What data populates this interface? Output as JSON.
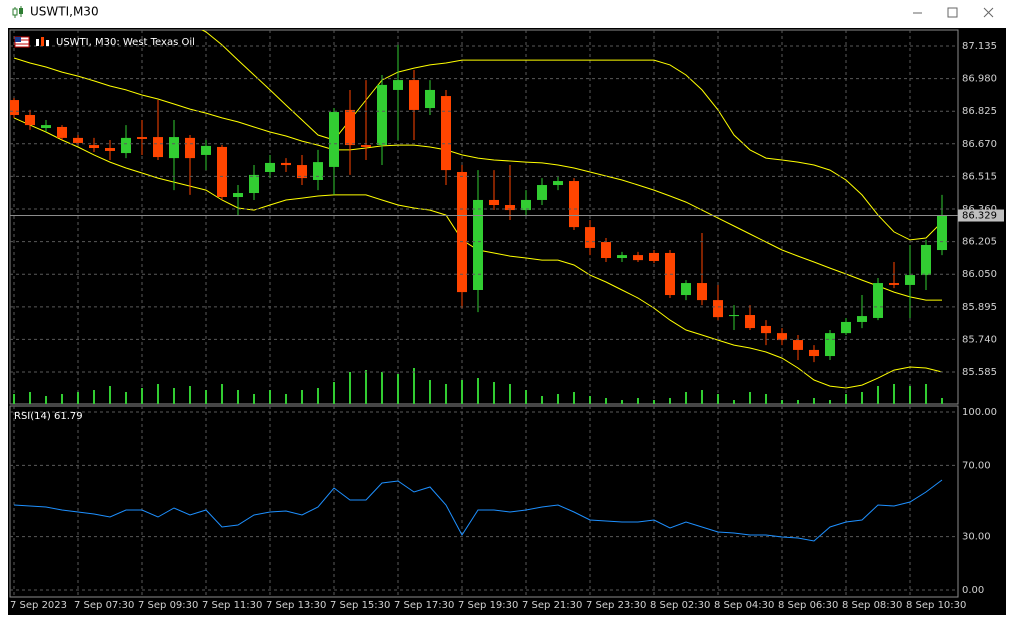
{
  "window_title": "USWTI,M30",
  "chart_data": [
    {
      "type": "candlestick",
      "title": "USWTI, M30:  West Texas Oil",
      "categories": [
        "7 Sep 2023",
        null,
        null,
        null,
        "7 Sep 07:30",
        null,
        null,
        null,
        "7 Sep 09:30",
        null,
        null,
        null,
        "7 Sep 11:30",
        null,
        null,
        null,
        "7 Sep 13:30",
        null,
        null,
        null,
        "7 Sep 15:30",
        null,
        null,
        null,
        "7 Sep 17:30",
        null,
        null,
        null,
        "7 Sep 19:30",
        null,
        null,
        null,
        "7 Sep 21:30",
        null,
        null,
        null,
        "7 Sep 23:30",
        null,
        null,
        null,
        "8 Sep 02:30",
        null,
        null,
        null,
        "8 Sep 04:30",
        null,
        null,
        null,
        "8 Sep 06:30",
        null,
        null,
        null,
        "8 Sep 08:30",
        null,
        null,
        null,
        "8 Sep 10:30",
        null,
        null
      ],
      "open": [
        86.878,
        86.807,
        86.745,
        86.75,
        86.698,
        86.664,
        86.65,
        86.626,
        86.702,
        86.702,
        86.602,
        86.698,
        86.617,
        86.655,
        86.417,
        86.436,
        86.536,
        86.579,
        86.569,
        86.498,
        86.56,
        86.831,
        86.664,
        86.664,
        86.926,
        86.973,
        86.84,
        86.897,
        86.536,
        85.975,
        86.403,
        86.379,
        86.355,
        86.403,
        86.474,
        86.493,
        86.274,
        86.203,
        86.127,
        86.141,
        86.151,
        86.151,
        85.951,
        86.008,
        85.927,
        85.851,
        85.856,
        85.804,
        85.77,
        85.737,
        85.69,
        85.661,
        85.77,
        85.823,
        85.842,
        86.008,
        85.999,
        86.046,
        86.165
      ],
      "high": [
        86.888,
        86.831,
        86.783,
        86.759,
        86.712,
        86.698,
        86.688,
        86.759,
        86.783,
        86.878,
        86.783,
        86.712,
        86.688,
        86.664,
        86.474,
        86.569,
        86.617,
        86.602,
        86.617,
        86.641,
        86.84,
        86.926,
        86.973,
        86.997,
        87.14,
        87.021,
        86.973,
        86.926,
        86.569,
        86.545,
        86.545,
        86.569,
        86.45,
        86.507,
        86.512,
        86.507,
        86.308,
        86.222,
        86.156,
        86.156,
        86.165,
        86.165,
        86.022,
        86.246,
        85.999,
        85.903,
        85.903,
        85.832,
        85.794,
        85.761,
        85.713,
        85.785,
        85.842,
        85.951,
        86.032,
        86.108,
        86.189,
        86.213,
        86.427
      ],
      "low": [
        86.793,
        86.736,
        86.726,
        86.688,
        86.664,
        86.631,
        86.593,
        86.602,
        86.617,
        86.593,
        86.45,
        86.427,
        86.545,
        86.403,
        86.331,
        86.403,
        86.507,
        86.536,
        86.474,
        86.45,
        86.427,
        86.522,
        86.593,
        86.569,
        86.688,
        86.688,
        86.807,
        86.474,
        85.889,
        85.87,
        86.355,
        86.308,
        86.331,
        86.379,
        86.45,
        86.26,
        86.141,
        86.108,
        86.108,
        86.108,
        86.103,
        85.937,
        85.927,
        85.903,
        85.832,
        85.785,
        85.785,
        85.713,
        85.713,
        85.642,
        85.632,
        85.642,
        85.761,
        85.794,
        85.832,
        85.984,
        85.842,
        85.975,
        86.141
      ],
      "close": [
        86.807,
        86.759,
        86.759,
        86.698,
        86.674,
        86.65,
        86.636,
        86.698,
        86.693,
        86.607,
        86.702,
        86.602,
        86.66,
        86.417,
        86.436,
        86.522,
        86.579,
        86.569,
        86.507,
        86.583,
        86.821,
        86.664,
        86.655,
        86.95,
        86.973,
        86.831,
        86.926,
        86.545,
        85.965,
        86.403,
        86.379,
        86.355,
        86.403,
        86.474,
        86.493,
        86.274,
        86.175,
        86.127,
        86.141,
        86.117,
        86.113,
        85.951,
        86.008,
        85.927,
        85.846,
        85.856,
        85.794,
        85.77,
        85.737,
        85.69,
        85.661,
        85.77,
        85.823,
        85.851,
        86.008,
        85.999,
        86.046,
        86.189,
        86.329
      ],
      "up_color": "#32cd32",
      "down_color": "#ff4500",
      "bands": {
        "color": "#ffff00",
        "upper": [
          87.363,
          87.354,
          87.344,
          87.339,
          87.335,
          87.33,
          87.325,
          87.316,
          87.306,
          87.287,
          87.268,
          87.24,
          87.202,
          87.14,
          87.068,
          86.997,
          86.926,
          86.854,
          86.783,
          86.712,
          86.688,
          86.783,
          86.878,
          86.973,
          87.011,
          87.03,
          87.045,
          87.054,
          87.068,
          87.068,
          87.068,
          87.068,
          87.068,
          87.068,
          87.068,
          87.068,
          87.068,
          87.068,
          87.068,
          87.068,
          87.068,
          87.045,
          86.997,
          86.926,
          86.831,
          86.712,
          86.641,
          86.602,
          86.593,
          86.583,
          86.569,
          86.545,
          86.498,
          86.427,
          86.331,
          86.251,
          86.213,
          86.222,
          86.298
        ],
        "middle": [
          87.078,
          87.054,
          87.035,
          87.011,
          86.992,
          86.969,
          86.945,
          86.926,
          86.902,
          86.883,
          86.859,
          86.835,
          86.816,
          86.793,
          86.774,
          86.75,
          86.726,
          86.707,
          86.683,
          86.664,
          86.641,
          86.641,
          86.65,
          86.66,
          86.664,
          86.664,
          86.655,
          86.641,
          86.617,
          86.602,
          86.593,
          86.588,
          86.583,
          86.579,
          86.569,
          86.555,
          86.536,
          86.517,
          86.498,
          86.474,
          86.45,
          86.422,
          86.393,
          86.355,
          86.317,
          86.279,
          86.241,
          86.203,
          86.165,
          86.136,
          86.108,
          86.079,
          86.051,
          86.022,
          85.994,
          85.965,
          85.942,
          85.927,
          85.927
        ],
        "lower": [
          86.793,
          86.759,
          86.726,
          86.688,
          86.655,
          86.617,
          86.583,
          86.555,
          86.531,
          86.507,
          86.488,
          86.469,
          86.45,
          86.403,
          86.365,
          86.355,
          86.379,
          86.403,
          86.412,
          86.422,
          86.427,
          86.427,
          86.427,
          86.403,
          86.379,
          86.365,
          86.355,
          86.331,
          86.213,
          86.165,
          86.151,
          86.136,
          86.127,
          86.117,
          86.117,
          86.094,
          86.046,
          86.013,
          85.975,
          85.937,
          85.889,
          85.832,
          85.785,
          85.761,
          85.737,
          85.713,
          85.699,
          85.68,
          85.651,
          85.604,
          85.547,
          85.518,
          85.509,
          85.523,
          85.556,
          85.594,
          85.609,
          85.604,
          85.585
        ]
      },
      "volume": {
        "color": "#32cd32",
        "values": [
          10,
          12,
          8,
          10,
          12,
          14,
          18,
          12,
          16,
          20,
          16,
          18,
          14,
          20,
          14,
          10,
          14,
          10,
          14,
          16,
          22,
          32,
          34,
          32,
          30,
          36,
          24,
          20,
          24,
          26,
          22,
          20,
          14,
          8,
          10,
          12,
          8,
          6,
          4,
          6,
          4,
          6,
          12,
          14,
          10,
          4,
          12,
          10,
          4,
          4,
          6,
          4,
          10,
          12,
          18,
          20,
          18,
          20,
          6
        ]
      },
      "ylim": [
        85.433,
        87.211
      ],
      "yticks": [
        87.135,
        {
          "value": 86.98,
          "label": "86.980"
        },
        86.825,
        {
          "value": 86.67,
          "label": "86.670"
        },
        86.515,
        {
          "value": 86.36,
          "label": "86.360"
        },
        86.205,
        {
          "value": 86.05,
          "label": "86.050"
        },
        85.895,
        {
          "value": 85.74,
          "label": "85.740"
        },
        85.585
      ],
      "grid": true
    },
    {
      "type": "line",
      "name": "RSI(14)",
      "color": "#1e90ff",
      "values": [
        47.75,
        47.19,
        46.63,
        44.94,
        43.82,
        42.7,
        41.01,
        44.94,
        44.94,
        41.01,
        46.07,
        42.13,
        44.94,
        35.39,
        36.52,
        42.13,
        43.82,
        44.38,
        42.13,
        46.63,
        57.3,
        50.56,
        50.56,
        60.11,
        61.24,
        55.06,
        57.87,
        47.75,
        30.9,
        44.94,
        44.94,
        43.82,
        44.94,
        46.63,
        47.75,
        43.82,
        39.33,
        38.76,
        38.2,
        38.2,
        39.33,
        34.83,
        38.2,
        35.39,
        32.58,
        32.02,
        30.9,
        30.9,
        29.78,
        29.21,
        27.53,
        35.39,
        38.2,
        39.33,
        47.75,
        47.19,
        49.44,
        55.06,
        61.79
      ],
      "ylim": [
        -3.93,
        103.37
      ],
      "yticks": [
        {
          "value": 100,
          "label": "100.00"
        },
        {
          "value": 70,
          "label": "70.00"
        },
        {
          "value": 30,
          "label": "30.00"
        },
        {
          "value": 0,
          "label": "0.00"
        }
      ],
      "grid": true
    }
  ]
}
